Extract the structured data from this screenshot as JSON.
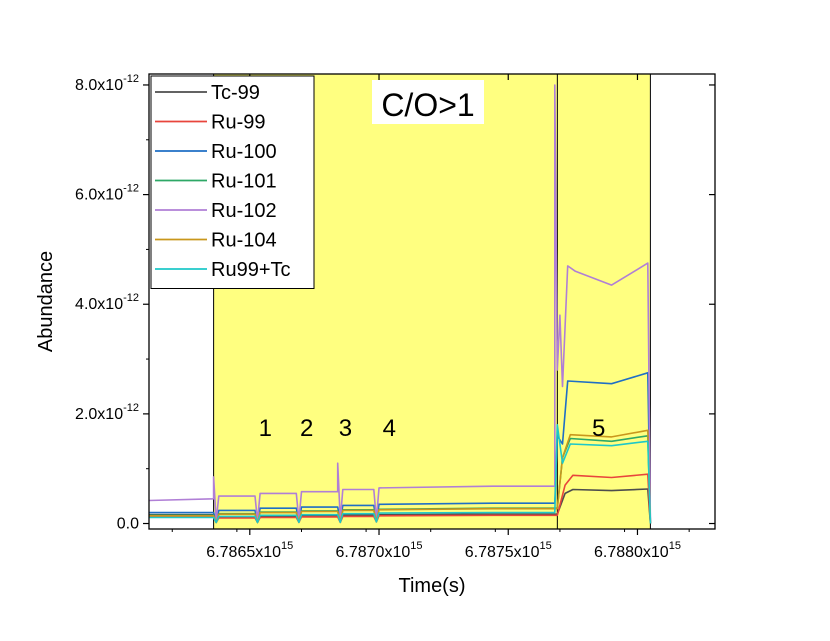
{
  "chart_data": {
    "type": "line",
    "title": "",
    "xlabel": "Time(s)",
    "ylabel": "Abundance",
    "xlim": [
      6786110000000000.0,
      6788300000000000.0
    ],
    "ylim": [
      -1e-13,
      8.2e-12
    ],
    "x_ticks": [
      {
        "value": 6786500000000000.0,
        "mantissa": "6.7865x10",
        "exp": "15"
      },
      {
        "value": 6787000000000000.0,
        "mantissa": "6.7870x10",
        "exp": "15"
      },
      {
        "value": 6787500000000000.0,
        "mantissa": "6.7875x10",
        "exp": "15"
      },
      {
        "value": 6788000000000000.0,
        "mantissa": "6.7880x10",
        "exp": "15"
      }
    ],
    "y_ticks": [
      {
        "value": 0,
        "mantissa": "0.0",
        "exp": ""
      },
      {
        "value": 2e-12,
        "mantissa": "2.0x10",
        "exp": "-12"
      },
      {
        "value": 4e-12,
        "mantissa": "4.0x10",
        "exp": "-12"
      },
      {
        "value": 6e-12,
        "mantissa": "6.0x10",
        "exp": "-12"
      },
      {
        "value": 8e-12,
        "mantissa": "8.0x10",
        "exp": "-12"
      }
    ],
    "highlight_region": {
      "x_start": 6786360000000000.0,
      "x_end": 6788050000000000.0,
      "color": "#ffff80"
    },
    "region_divider": 6787690000000000.0,
    "annotation": "C/O>1",
    "phases": [
      {
        "label": "1",
        "x": 6786560000000000.0,
        "y": 1.6e-12
      },
      {
        "label": "2",
        "x": 6786720000000000.0,
        "y": 1.6e-12
      },
      {
        "label": "3",
        "x": 6786870000000000.0,
        "y": 1.6e-12
      },
      {
        "label": "4",
        "x": 6787040000000000.0,
        "y": 1.6e-12
      },
      {
        "label": "5",
        "x": 6787850000000000.0,
        "y": 1.6e-12
      }
    ],
    "legend_position": "top-left",
    "series": [
      {
        "name": "Tc-99",
        "color": "#4d4d4d",
        "points": [
          [
            6786110000000000.0,
            1.6e-13
          ],
          [
            6786360000000000.0,
            1.6e-13
          ],
          [
            6786370000000000.0,
            2e-14
          ],
          [
            6786380000000000.0,
            1.2e-13
          ],
          [
            6786520000000000.0,
            1.2e-13
          ],
          [
            6786530000000000.0,
            2e-14
          ],
          [
            6786540000000000.0,
            1.3e-13
          ],
          [
            6786680000000000.0,
            1.3e-13
          ],
          [
            6786690000000000.0,
            3e-14
          ],
          [
            6786700000000000.0,
            1.4e-13
          ],
          [
            6786840000000000.0,
            1.4e-13
          ],
          [
            6786850000000000.0,
            3e-14
          ],
          [
            6786860000000000.0,
            1.5e-13
          ],
          [
            6786980000000000.0,
            1.5e-13
          ],
          [
            6786990000000000.0,
            4e-14
          ],
          [
            6787000000000000.0,
            1.6e-13
          ],
          [
            6787440000000000.0,
            1.7e-13
          ],
          [
            6787690000000000.0,
            1.7e-13
          ],
          [
            6787720000000000.0,
            5.5e-13
          ],
          [
            6787750000000000.0,
            6.2e-13
          ],
          [
            6787900000000000.0,
            6e-13
          ],
          [
            6788040000000000.0,
            6.3e-13
          ],
          [
            6788050000000000.0,
            0.0
          ]
        ]
      },
      {
        "name": "Ru-99",
        "color": "#e8453c",
        "points": [
          [
            6786110000000000.0,
            1.2e-13
          ],
          [
            6786360000000000.0,
            1.2e-13
          ],
          [
            6786370000000000.0,
            2e-14
          ],
          [
            6786380000000000.0,
            1e-13
          ],
          [
            6786520000000000.0,
            1e-13
          ],
          [
            6786530000000000.0,
            2e-14
          ],
          [
            6786540000000000.0,
            1.1e-13
          ],
          [
            6786680000000000.0,
            1.1e-13
          ],
          [
            6786690000000000.0,
            2e-14
          ],
          [
            6786700000000000.0,
            1.2e-13
          ],
          [
            6786840000000000.0,
            1.2e-13
          ],
          [
            6786850000000000.0,
            2e-14
          ],
          [
            6786860000000000.0,
            1.3e-13
          ],
          [
            6786980000000000.0,
            1.3e-13
          ],
          [
            6786990000000000.0,
            3e-14
          ],
          [
            6787000000000000.0,
            1.4e-13
          ],
          [
            6787440000000000.0,
            1.5e-13
          ],
          [
            6787690000000000.0,
            1.5e-13
          ],
          [
            6787720000000000.0,
            7e-13
          ],
          [
            6787750000000000.0,
            8.8e-13
          ],
          [
            6787900000000000.0,
            8.4e-13
          ],
          [
            6788040000000000.0,
            9e-13
          ],
          [
            6788050000000000.0,
            0.0
          ]
        ]
      },
      {
        "name": "Ru-100",
        "color": "#1f6fc5",
        "points": [
          [
            6786110000000000.0,
            2e-13
          ],
          [
            6786360000000000.0,
            2e-13
          ],
          [
            6786370000000000.0,
            3e-14
          ],
          [
            6786380000000000.0,
            2.4e-13
          ],
          [
            6786520000000000.0,
            2.4e-13
          ],
          [
            6786530000000000.0,
            3e-14
          ],
          [
            6786540000000000.0,
            2.8e-13
          ],
          [
            6786680000000000.0,
            2.8e-13
          ],
          [
            6786690000000000.0,
            4e-14
          ],
          [
            6786700000000000.0,
            3e-13
          ],
          [
            6786840000000000.0,
            3e-13
          ],
          [
            6786850000000000.0,
            4e-14
          ],
          [
            6786860000000000.0,
            3.3e-13
          ],
          [
            6786980000000000.0,
            3.3e-13
          ],
          [
            6786990000000000.0,
            5e-14
          ],
          [
            6787000000000000.0,
            3.5e-13
          ],
          [
            6787440000000000.0,
            3.7e-13
          ],
          [
            6787680000000000.0,
            3.7e-13
          ],
          [
            6787690000000000.0,
            1.6e-12
          ],
          [
            6787710000000000.0,
            1.45e-12
          ],
          [
            6787730000000000.0,
            2.6e-12
          ],
          [
            6787900000000000.0,
            2.55e-12
          ],
          [
            6788040000000000.0,
            2.75e-12
          ],
          [
            6788050000000000.0,
            0.0
          ]
        ]
      },
      {
        "name": "Ru-101",
        "color": "#2ea866",
        "points": [
          [
            6786110000000000.0,
            1.5e-13
          ],
          [
            6786360000000000.0,
            1.5e-13
          ],
          [
            6786370000000000.0,
            2e-14
          ],
          [
            6786380000000000.0,
            1.8e-13
          ],
          [
            6786520000000000.0,
            1.8e-13
          ],
          [
            6786530000000000.0,
            2e-14
          ],
          [
            6786540000000000.0,
            2.1e-13
          ],
          [
            6786680000000000.0,
            2.1e-13
          ],
          [
            6786690000000000.0,
            3e-14
          ],
          [
            6786700000000000.0,
            2.3e-13
          ],
          [
            6786840000000000.0,
            2.3e-13
          ],
          [
            6786850000000000.0,
            3e-14
          ],
          [
            6786860000000000.0,
            2.5e-13
          ],
          [
            6786980000000000.0,
            2.5e-13
          ],
          [
            6786990000000000.0,
            4e-14
          ],
          [
            6787000000000000.0,
            2.6e-13
          ],
          [
            6787440000000000.0,
            2.8e-13
          ],
          [
            6787690000000000.0,
            2.8e-13
          ],
          [
            6787710000000000.0,
            1.2e-12
          ],
          [
            6787740000000000.0,
            1.55e-12
          ],
          [
            6787900000000000.0,
            1.5e-12
          ],
          [
            6788040000000000.0,
            1.6e-12
          ],
          [
            6788050000000000.0,
            0.0
          ]
        ]
      },
      {
        "name": "Ru-102",
        "color": "#b07fd6",
        "points": [
          [
            6786110000000000.0,
            4.2e-13
          ],
          [
            6786360000000000.0,
            4.5e-13
          ],
          [
            6786360000000000.0,
            8.5e-13
          ],
          [
            6786370000000000.0,
            5e-14
          ],
          [
            6786380000000000.0,
            5e-13
          ],
          [
            6786520000000000.0,
            5e-13
          ],
          [
            6786530000000000.0,
            5e-14
          ],
          [
            6786540000000000.0,
            5.5e-13
          ],
          [
            6786680000000000.0,
            5.5e-13
          ],
          [
            6786690000000000.0,
            6e-14
          ],
          [
            6786700000000000.0,
            5.8e-13
          ],
          [
            6786840000000000.0,
            5.8e-13
          ],
          [
            6786840000000000.0,
            1.1e-12
          ],
          [
            6786850000000000.0,
            6e-14
          ],
          [
            6786860000000000.0,
            6.2e-13
          ],
          [
            6786980000000000.0,
            6.2e-13
          ],
          [
            6786990000000000.0,
            7e-14
          ],
          [
            6787000000000000.0,
            6.5e-13
          ],
          [
            6787440000000000.0,
            6.8e-13
          ],
          [
            6787680000000000.0,
            6.8e-13
          ],
          [
            6787680000000000.0,
            8e-12
          ],
          [
            6787690000000000.0,
            2.8e-12
          ],
          [
            6787700000000000.0,
            3.8e-12
          ],
          [
            6787710000000000.0,
            2.5e-12
          ],
          [
            6787730000000000.0,
            4.7e-12
          ],
          [
            6787760000000000.0,
            4.6e-12
          ],
          [
            6787900000000000.0,
            4.35e-12
          ],
          [
            6788040000000000.0,
            4.75e-12
          ],
          [
            6788050000000000.0,
            0.0
          ]
        ]
      },
      {
        "name": "Ru-104",
        "color": "#c9971c",
        "points": [
          [
            6786110000000000.0,
            1.4e-13
          ],
          [
            6786360000000000.0,
            1.4e-13
          ],
          [
            6786370000000000.0,
            2e-14
          ],
          [
            6786380000000000.0,
            1.7e-13
          ],
          [
            6786520000000000.0,
            1.7e-13
          ],
          [
            6786530000000000.0,
            2e-14
          ],
          [
            6786540000000000.0,
            2e-13
          ],
          [
            6786680000000000.0,
            2e-13
          ],
          [
            6786690000000000.0,
            3e-14
          ],
          [
            6786700000000000.0,
            2.2e-13
          ],
          [
            6786840000000000.0,
            2.2e-13
          ],
          [
            6786850000000000.0,
            3e-14
          ],
          [
            6786860000000000.0,
            2.4e-13
          ],
          [
            6786980000000000.0,
            2.4e-13
          ],
          [
            6786990000000000.0,
            4e-14
          ],
          [
            6787000000000000.0,
            2.5e-13
          ],
          [
            6787440000000000.0,
            2.7e-13
          ],
          [
            6787690000000000.0,
            2.7e-13
          ],
          [
            6787710000000000.0,
            1.2e-12
          ],
          [
            6787740000000000.0,
            1.62e-12
          ],
          [
            6787900000000000.0,
            1.58e-12
          ],
          [
            6788040000000000.0,
            1.7e-12
          ],
          [
            6788050000000000.0,
            0.0
          ]
        ]
      },
      {
        "name": "Ru99+Tc",
        "color": "#1ec8c8",
        "points": [
          [
            6786110000000000.0,
            1.1e-13
          ],
          [
            6786360000000000.0,
            1.1e-13
          ],
          [
            6786370000000000.0,
            2e-14
          ],
          [
            6786380000000000.0,
            1.3e-13
          ],
          [
            6786520000000000.0,
            1.3e-13
          ],
          [
            6786530000000000.0,
            2e-14
          ],
          [
            6786540000000000.0,
            1.5e-13
          ],
          [
            6786680000000000.0,
            1.5e-13
          ],
          [
            6786690000000000.0,
            2e-14
          ],
          [
            6786700000000000.0,
            1.6e-13
          ],
          [
            6786840000000000.0,
            1.6e-13
          ],
          [
            6786850000000000.0,
            2e-14
          ],
          [
            6786860000000000.0,
            1.8e-13
          ],
          [
            6786980000000000.0,
            1.8e-13
          ],
          [
            6786990000000000.0,
            3e-14
          ],
          [
            6787000000000000.0,
            1.9e-13
          ],
          [
            6787440000000000.0,
            2e-13
          ],
          [
            6787680000000000.0,
            2e-13
          ],
          [
            6787690000000000.0,
            1.8e-12
          ],
          [
            6787710000000000.0,
            1.1e-12
          ],
          [
            6787740000000000.0,
            1.45e-12
          ],
          [
            6787900000000000.0,
            1.42e-12
          ],
          [
            6788040000000000.0,
            1.5e-12
          ],
          [
            6788050000000000.0,
            0.0
          ]
        ]
      }
    ]
  }
}
